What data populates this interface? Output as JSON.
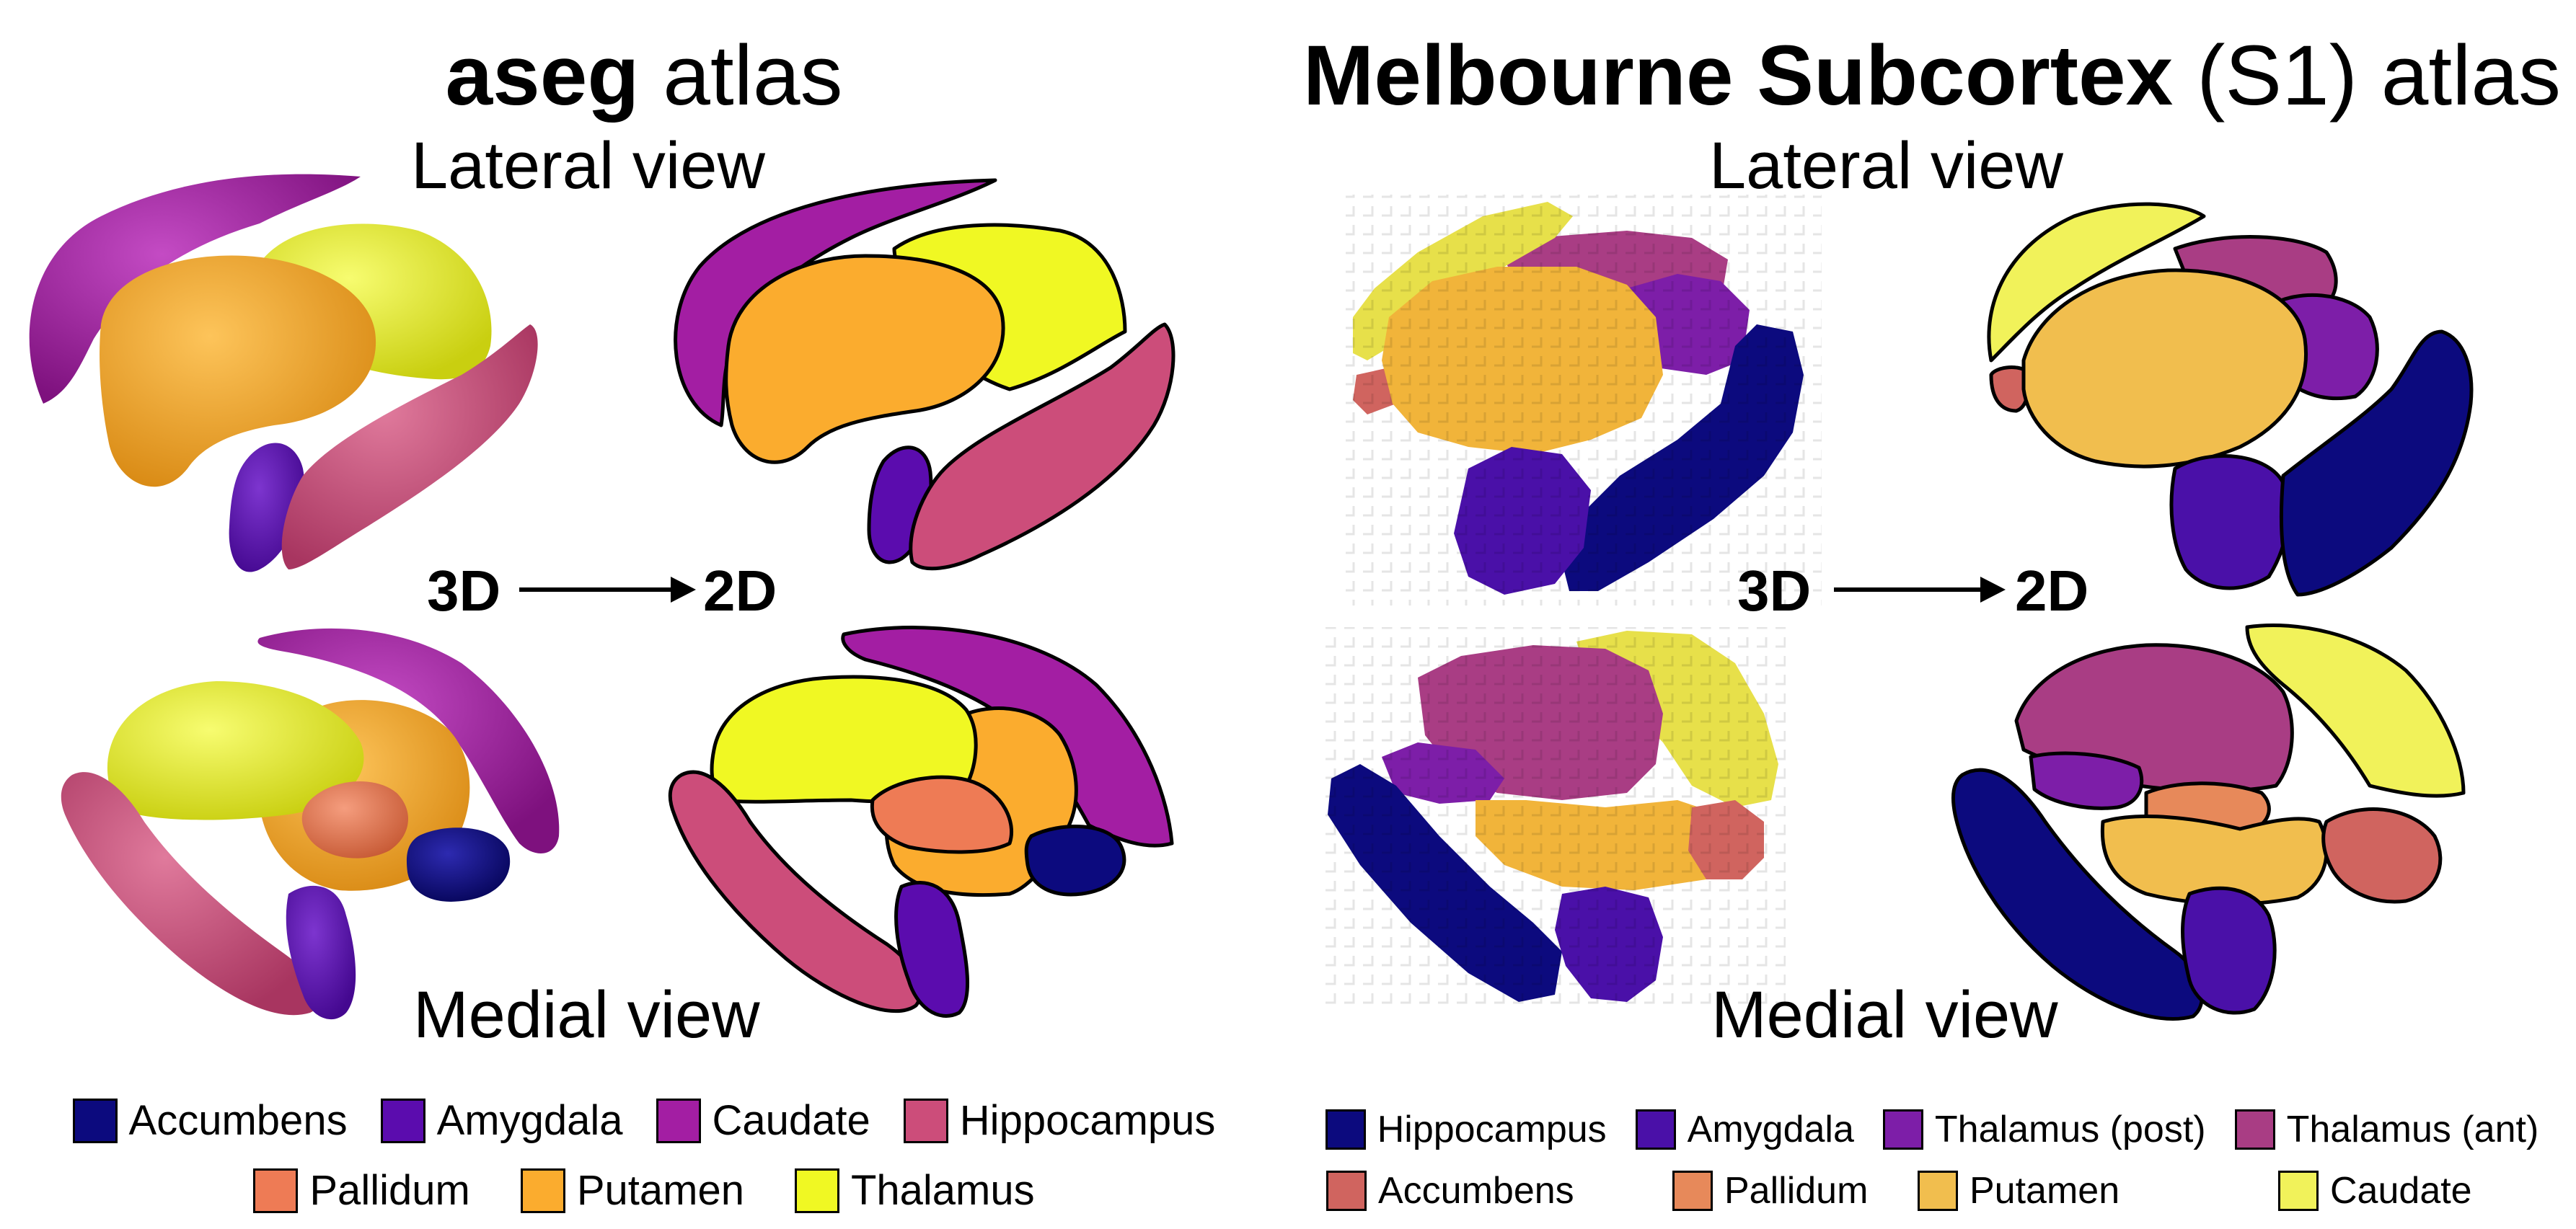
{
  "panels": {
    "aseg": {
      "title_bold": "aseg",
      "title_rest": " atlas",
      "lateral_label": "Lateral view",
      "medial_label": "Medial view",
      "arrow_from": "3D",
      "arrow_to": "2D",
      "legend_row1": [
        {
          "label": "Accumbens",
          "color": "#0c0a7e"
        },
        {
          "label": "Amygdala",
          "color": "#5b0cae"
        },
        {
          "label": "Caudate",
          "color": "#a31ea3"
        },
        {
          "label": "Hippocampus",
          "color": "#cc4d7a"
        }
      ],
      "legend_row2": [
        {
          "label": "Pallidum",
          "color": "#ee7b55"
        },
        {
          "label": "Putamen",
          "color": "#fbac2e"
        },
        {
          "label": "Thalamus",
          "color": "#f0f823"
        }
      ]
    },
    "melbourne": {
      "title_bold": "Melbourne Subcortex",
      "title_rest": " (S1) atlas",
      "lateral_label": "Lateral view",
      "medial_label": "Medial view",
      "arrow_from": "3D",
      "arrow_to": "2D",
      "legend_row1": [
        {
          "label": "Hippocampus",
          "color": "#0c0a7e"
        },
        {
          "label": "Amygdala",
          "color": "#4a10a8"
        },
        {
          "label": "Thalamus (post)",
          "color": "#7d1ea8"
        },
        {
          "label": "Thalamus (ant)",
          "color": "#a93d84"
        }
      ],
      "legend_row2": [
        {
          "label": "Accumbens",
          "color": "#d0645f"
        },
        {
          "label": "Pallidum",
          "color": "#e7895a"
        },
        {
          "label": "Putamen",
          "color": "#f1be4e"
        },
        {
          "label": "Caudate",
          "color": "#f1f25a"
        }
      ]
    }
  }
}
